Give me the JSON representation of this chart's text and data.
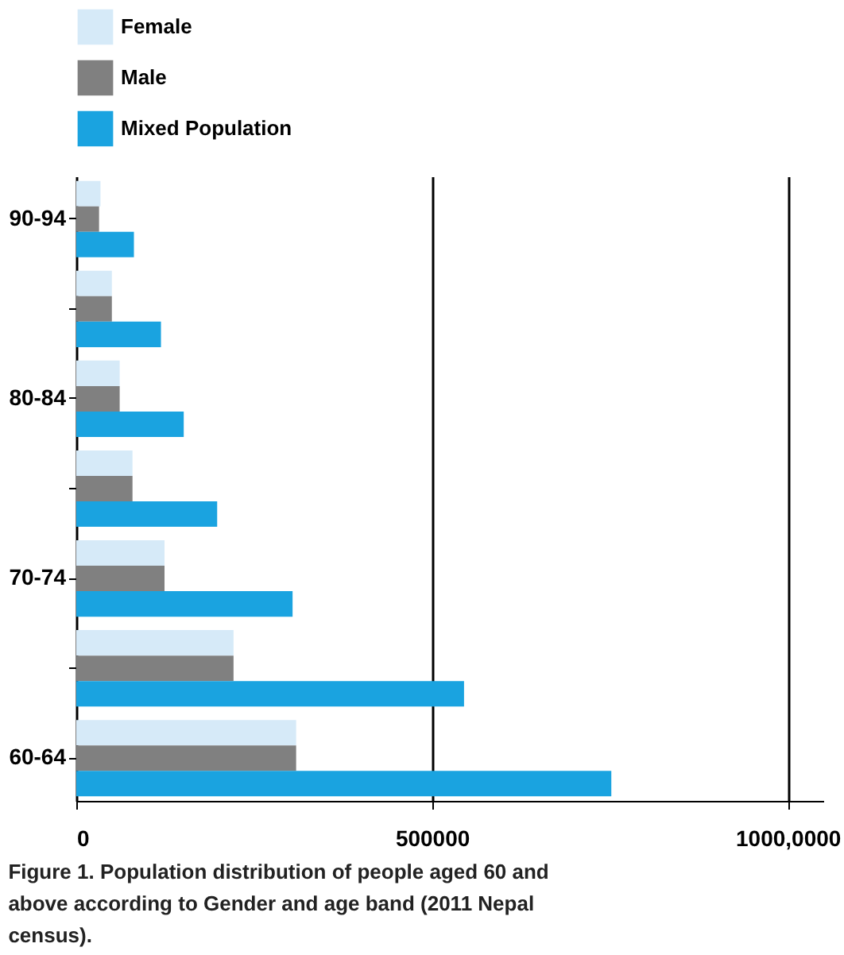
{
  "chart_data": {
    "type": "bar",
    "orientation": "horizontal",
    "categories": [
      "90-94",
      null,
      "80-84",
      null,
      "70-74",
      null,
      "60-64"
    ],
    "series": [
      {
        "name": "Female",
        "color": "#d6eaf8",
        "values": [
          34000,
          50000,
          61000,
          79000,
          124000,
          221000,
          309000
        ]
      },
      {
        "name": "Male",
        "color": "#808080",
        "values": [
          32000,
          50000,
          61000,
          79000,
          124000,
          221000,
          309000
        ]
      },
      {
        "name": "Mixed Population",
        "color": "#1aa3e0",
        "values": [
          81000,
          119000,
          151000,
          198000,
          304000,
          545000,
          752000
        ]
      }
    ],
    "xlim": [
      0,
      1050000
    ],
    "xticks": [
      0,
      500000,
      {
        "value": 1000000,
        "label": "1000,0000"
      }
    ],
    "grid": "x",
    "legend": "top",
    "annotations": [
      "Figure 1. Population distribution of people aged 60 and above according to Gender and age band (2011 Nepal census)."
    ]
  }
}
